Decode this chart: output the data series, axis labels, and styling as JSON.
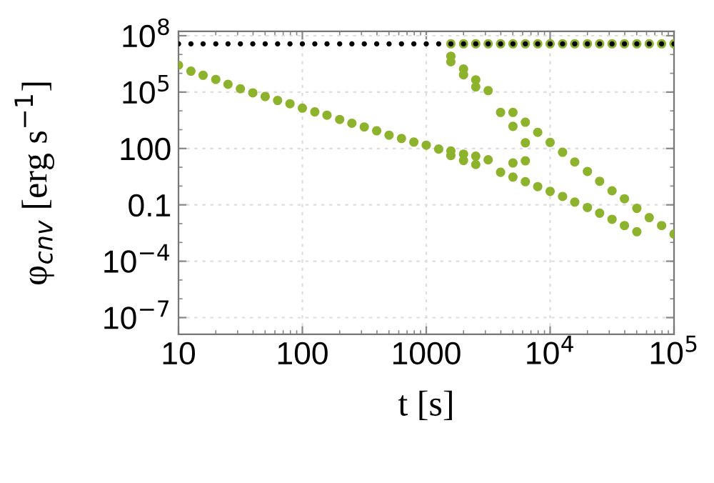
{
  "chart_data": {
    "type": "scatter",
    "xlabel": "t [s]",
    "ylabel": "φ$_{cnv}$ [erg s$^{−1}$]",
    "log": "xy",
    "grid": true,
    "marker": "circle",
    "xlim": [
      10,
      100000
    ],
    "ylim": [
      1.3e-08,
      170000000.0
    ],
    "xticks": [
      10,
      100,
      1000,
      {
        "value": 10000,
        "label": "10$^{4}$"
      },
      {
        "value": 100000,
        "label": "10$^{5}$"
      }
    ],
    "yticks": [
      {
        "value": 1e-07,
        "label": "10$^{−7}$"
      },
      {
        "value": 0.0001,
        "label": "10$^{−4}$"
      },
      0.1,
      100,
      {
        "value": 100000,
        "label": "10$^{5}$"
      },
      {
        "value": 100000000,
        "label": "10$^{8}$"
      }
    ],
    "series": [
      {
        "color": "#8db32d",
        "x": [
          10,
          12.6,
          15.8,
          20,
          25.1,
          31.6,
          39.8,
          50.1,
          63.1,
          79.4,
          100,
          126,
          158,
          200,
          251,
          316,
          398,
          501,
          631,
          794,
          1000,
          1260,
          1580,
          1580,
          1580,
          1580,
          1580,
          2000,
          2000,
          2000,
          2000,
          2000,
          2510,
          2510,
          2510,
          2510,
          2510,
          3160,
          3160,
          3160,
          3980,
          3980,
          3980,
          5010,
          5010,
          5010,
          5010,
          5010,
          6310,
          6310,
          6310,
          6310,
          6310,
          7940,
          7940,
          7940,
          10000,
          10000,
          10000,
          12600,
          12600,
          12600,
          15800,
          15800,
          15800,
          20000,
          20000,
          20000,
          25100,
          25100,
          25100,
          31600,
          31600,
          31600,
          39800,
          39800,
          39800,
          50100,
          50100,
          50100,
          63100,
          63100,
          79400,
          79400,
          100000,
          100000
        ],
        "values": [
          2700000.0,
          1300000.0,
          790000.0,
          470000.0,
          260000.0,
          150000.0,
          91000.0,
          58000.0,
          36000.0,
          24000.0,
          14000.0,
          8900.0,
          5900.0,
          3500.0,
          2200.0,
          1400.0,
          870,
          510,
          340,
          220,
          150,
          93,
          74,
          42,
          8100000.0,
          4100000.0,
          37000000.0,
          50,
          23,
          1700000.0,
          830000.0,
          37000000.0,
          39,
          14,
          450000.0,
          190000.0,
          37000000.0,
          25,
          120000.0,
          37000000.0,
          5.4,
          8300.0,
          37000000.0,
          3.0,
          17,
          1500.0,
          8300.0,
          37000000.0,
          1.7,
          22,
          200,
          2500.0,
          37000000.0,
          0.93,
          720,
          37000000.0,
          0.52,
          210,
          37000000.0,
          0.28,
          63,
          37000000.0,
          0.14,
          19,
          37000000.0,
          0.072,
          6.0,
          37000000.0,
          0.036,
          1.8,
          37000000.0,
          0.017,
          0.56,
          37000000.0,
          0.0079,
          0.21,
          37000000.0,
          0.0037,
          0.065,
          37000000.0,
          0.021,
          37000000.0,
          0.0079,
          37000000.0,
          0.0028,
          37000000.0
        ]
      },
      {
        "color": "#000000",
        "x": [
          10,
          12.6,
          15.8,
          20,
          25.1,
          31.6,
          39.8,
          50.1,
          63.1,
          79.4,
          100,
          126,
          158,
          200,
          251,
          316,
          398,
          501,
          631,
          794,
          1000,
          1260,
          1580,
          2000,
          2510,
          3160,
          3980,
          5010,
          6310,
          7940,
          10000,
          12600,
          15800,
          20000,
          25100,
          31600,
          39800,
          50100,
          63100,
          79400,
          100000
        ],
        "values": [
          37000000.0,
          37000000.0,
          37000000.0,
          37000000.0,
          37000000.0,
          37000000.0,
          37000000.0,
          37000000.0,
          37000000.0,
          37000000.0,
          37000000.0,
          37000000.0,
          37000000.0,
          37000000.0,
          37000000.0,
          37000000.0,
          37000000.0,
          37000000.0,
          37000000.0,
          37000000.0,
          37000000.0,
          37000000.0,
          37000000.0,
          37000000.0,
          37000000.0,
          37000000.0,
          37000000.0,
          37000000.0,
          37000000.0,
          37000000.0,
          37000000.0,
          37000000.0,
          37000000.0,
          37000000.0,
          37000000.0,
          37000000.0,
          37000000.0,
          37000000.0,
          37000000.0,
          37000000.0,
          37000000.0
        ]
      }
    ]
  }
}
